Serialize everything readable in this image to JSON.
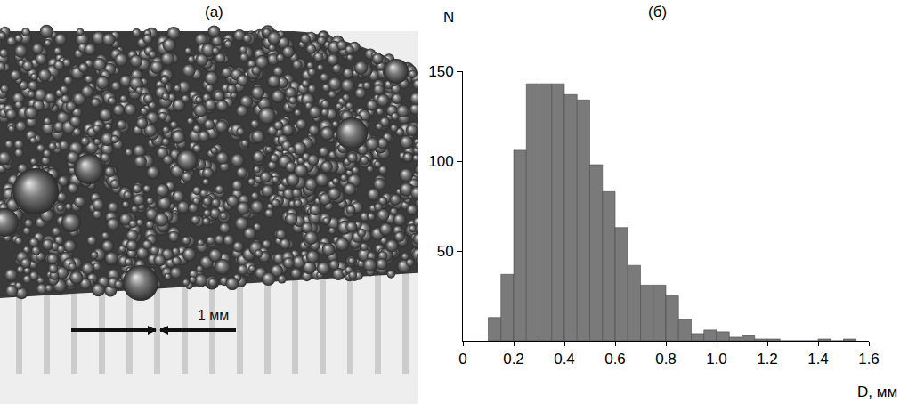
{
  "panels": [
    {
      "label": "(а)",
      "scale_bar": "1 мм"
    },
    {
      "label": "(б)"
    }
  ],
  "chart_data": {
    "type": "histogram",
    "x_label": "D, мм",
    "y_label": "N",
    "bins": [
      0.1,
      0.15,
      0.2,
      0.25,
      0.3,
      0.35,
      0.4,
      0.45,
      0.5,
      0.55,
      0.6,
      0.65,
      0.7,
      0.75,
      0.8,
      0.85,
      0.9,
      0.95,
      1.0,
      1.05,
      1.1,
      1.15,
      1.2,
      1.25,
      1.3,
      1.35,
      1.4,
      1.45,
      1.5,
      1.55
    ],
    "values": [
      13,
      37,
      106,
      143,
      143,
      143,
      137,
      134,
      98,
      83,
      63,
      42,
      31,
      31,
      25,
      12,
      4,
      6,
      5,
      2,
      3,
      1,
      1,
      0,
      0,
      0,
      1,
      0,
      1
    ],
    "color": "#7a7a7a",
    "xlim": [
      0,
      1.6
    ],
    "xticks": [
      0,
      0.2,
      0.4,
      0.6,
      0.8,
      {
        "value": 1,
        "label": "1.0"
      },
      1.2,
      1.4,
      1.6
    ],
    "ylim": [
      0,
      150
    ],
    "yticks": [
      50,
      100,
      150
    ],
    "grid": false
  }
}
